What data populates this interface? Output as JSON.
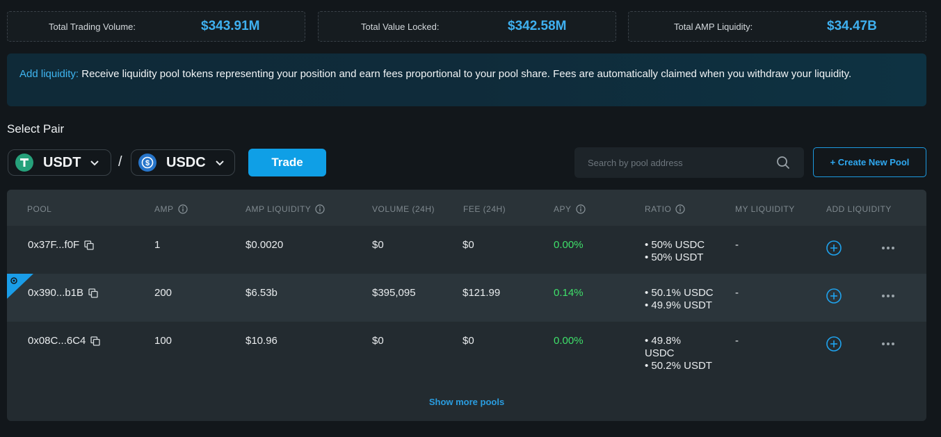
{
  "stats": [
    {
      "label": "Total Trading Volume:",
      "value": "$343.91M"
    },
    {
      "label": "Total Value Locked:",
      "value": "$342.58M"
    },
    {
      "label": "Total AMP Liquidity:",
      "value": "$34.47B"
    }
  ],
  "info": {
    "highlight": "Add liquidity:",
    "text": " Receive liquidity pool tokens representing your position and earn fees proportional to your pool share. Fees are automatically claimed when you withdraw your liquidity."
  },
  "select_pair": {
    "title": "Select Pair",
    "token_a": "USDT",
    "token_b": "USDC",
    "separator": "/",
    "trade_label": "Trade"
  },
  "search": {
    "placeholder": "Search by pool address"
  },
  "create_pool_label": "+ Create New Pool",
  "table": {
    "headers": {
      "pool": "POOL",
      "amp": "AMP",
      "amp_liquidity": "AMP LIQUIDITY",
      "volume": "VOLUME (24H)",
      "fee": "FEE (24H)",
      "apy": "APY",
      "ratio": "RATIO",
      "my_liquidity": "MY LIQUIDITY",
      "add_liquidity": "ADD LIQUIDITY"
    },
    "rows": [
      {
        "pool": "0x37F...f0F",
        "amp": "1",
        "amp_liquidity": "$0.0020",
        "volume": "$0",
        "fee": "$0",
        "apy": "0.00%",
        "ratio_1": "• 50% USDC",
        "ratio_2": "• 50% USDT",
        "ratio_3": "",
        "my_liquidity": "-"
      },
      {
        "pool": "0x390...b1B",
        "amp": "200",
        "amp_liquidity": "$6.53b",
        "volume": "$395,095",
        "fee": "$121.99",
        "apy": "0.14%",
        "ratio_1": "• 50.1% USDC",
        "ratio_2": "• 49.9% USDT",
        "ratio_3": "",
        "my_liquidity": "-"
      },
      {
        "pool": "0x08C...6C4",
        "amp": "100",
        "amp_liquidity": "$10.96",
        "volume": "$0",
        "fee": "$0",
        "apy": "0.00%",
        "ratio_1": "• 49.8%",
        "ratio_2": "USDC",
        "ratio_3": "• 50.2% USDT",
        "my_liquidity": "-"
      }
    ],
    "show_more": "Show more pools"
  },
  "colors": {
    "accent": "#0f9fe6",
    "apy_green": "#3fe06a",
    "stat_blue": "#3fb0f0"
  }
}
